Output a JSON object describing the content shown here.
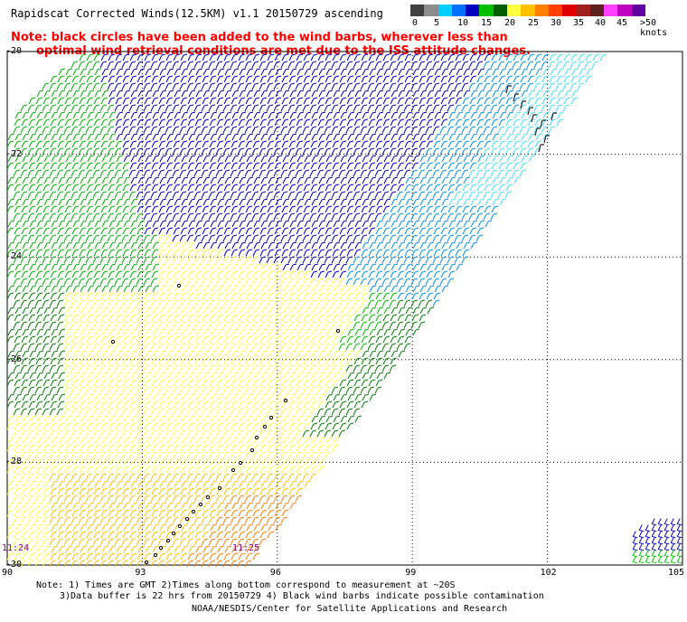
{
  "header": {
    "title": "Rapidscat Corrected Winds(12.5KM) v1.1 20150729 ascending",
    "note_line1": "Note: black circles have been added to the wind barbs, wherever less than",
    "note_line2": "optimal wind retrieval conditions are met due to the ISS attitude changes."
  },
  "legend": {
    "labels": [
      "0",
      "5",
      "10",
      "15",
      "20",
      "25",
      "30",
      "35",
      "40",
      "45",
      ">50 knots"
    ],
    "colors": [
      "#404040",
      "#8c8c8c",
      "#00d0ff",
      "#0070ff",
      "#0000c0",
      "#00c000",
      "#006000",
      "#ffff40",
      "#ffc000",
      "#ff8000",
      "#ff4000",
      "#e00000",
      "#a02020",
      "#602020",
      "#ff40ff",
      "#c000c0",
      "#6000a0"
    ]
  },
  "axes": {
    "lat_labels": [
      "-20",
      "-22",
      "-24",
      "-26",
      "-28",
      "-30"
    ],
    "lon_labels": [
      "90",
      "93",
      "96",
      "99",
      "102",
      "105"
    ],
    "lat_range": [
      -30,
      -20
    ],
    "lon_range": [
      90,
      105
    ]
  },
  "time_labels": [
    "11:24",
    "11:25"
  ],
  "footer": {
    "line1": "Note: 1) Times are GMT 2)Times along bottom correspond to measurement at ~20S",
    "line2": "3)Data buffer is 22 hrs from 20150729 4) Black wind barbs indicate possible contamination",
    "line3": "NOAA/NESDIS/Center for Satellite Applications and Research"
  }
}
